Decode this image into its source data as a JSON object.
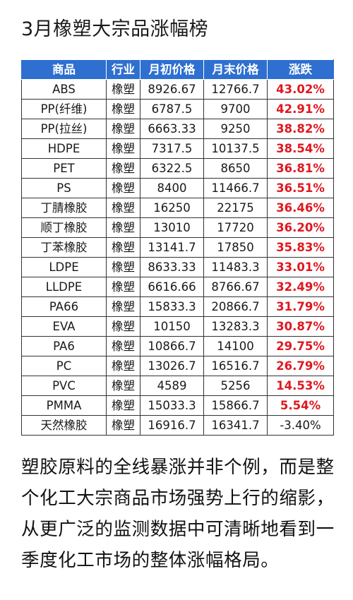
{
  "title": "3月橡塑大宗品涨幅榜",
  "table": {
    "headers": [
      "商品",
      "行业",
      "月初价格",
      "月末价格",
      "涨跌"
    ],
    "rows": [
      {
        "product": "ABS",
        "industry": "橡塑",
        "start": "8926.67",
        "end": "12766.7",
        "change": "43.02%",
        "direction": "up"
      },
      {
        "product": "PP(纤维)",
        "industry": "橡塑",
        "start": "6787.5",
        "end": "9700",
        "change": "42.91%",
        "direction": "up"
      },
      {
        "product": "PP(拉丝)",
        "industry": "橡塑",
        "start": "6663.33",
        "end": "9250",
        "change": "38.82%",
        "direction": "up"
      },
      {
        "product": "HDPE",
        "industry": "橡塑",
        "start": "7317.5",
        "end": "10137.5",
        "change": "38.54%",
        "direction": "up"
      },
      {
        "product": "PET",
        "industry": "橡塑",
        "start": "6322.5",
        "end": "8650",
        "change": "36.81%",
        "direction": "up"
      },
      {
        "product": "PS",
        "industry": "橡塑",
        "start": "8400",
        "end": "11466.7",
        "change": "36.51%",
        "direction": "up"
      },
      {
        "product": "丁腈橡胶",
        "industry": "橡塑",
        "start": "16250",
        "end": "22175",
        "change": "36.46%",
        "direction": "up"
      },
      {
        "product": "顺丁橡胶",
        "industry": "橡塑",
        "start": "13010",
        "end": "17720",
        "change": "36.20%",
        "direction": "up"
      },
      {
        "product": "丁苯橡胶",
        "industry": "橡塑",
        "start": "13141.7",
        "end": "17850",
        "change": "35.83%",
        "direction": "up"
      },
      {
        "product": "LDPE",
        "industry": "橡塑",
        "start": "8633.33",
        "end": "11483.3",
        "change": "33.01%",
        "direction": "up"
      },
      {
        "product": "LLDPE",
        "industry": "橡塑",
        "start": "6616.66",
        "end": "8766.67",
        "change": "32.49%",
        "direction": "up"
      },
      {
        "product": "PA66",
        "industry": "橡塑",
        "start": "15833.3",
        "end": "20866.7",
        "change": "31.79%",
        "direction": "up"
      },
      {
        "product": "EVA",
        "industry": "橡塑",
        "start": "10150",
        "end": "13283.3",
        "change": "30.87%",
        "direction": "up"
      },
      {
        "product": "PA6",
        "industry": "橡塑",
        "start": "10866.7",
        "end": "14100",
        "change": "29.75%",
        "direction": "up"
      },
      {
        "product": "PC",
        "industry": "橡塑",
        "start": "13026.7",
        "end": "16516.7",
        "change": "26.79%",
        "direction": "up"
      },
      {
        "product": "PVC",
        "industry": "橡塑",
        "start": "4589",
        "end": "5256",
        "change": "14.53%",
        "direction": "up"
      },
      {
        "product": "PMMA",
        "industry": "橡塑",
        "start": "15033.3",
        "end": "15866.7",
        "change": "5.54%",
        "direction": "up"
      },
      {
        "product": "天然橡胶",
        "industry": "橡塑",
        "start": "16916.7",
        "end": "16341.7",
        "change": "-3.40%",
        "direction": "down"
      }
    ]
  },
  "paragraph": "塑胶原料的全线暴涨并非个例，而是整个化工大宗商品市场强势上行的缩影，从更广泛的监测数据中可清晰地看到一季度化工市场的整体涨幅格局。",
  "colors": {
    "header_bg": "#2e6fd0",
    "up": "#e0181f",
    "down": "#1a1a1a"
  }
}
